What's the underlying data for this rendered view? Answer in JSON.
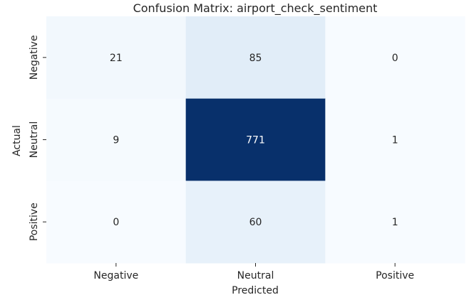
{
  "chart_data": {
    "type": "heatmap",
    "title": "Confusion Matrix: airport_check_sentiment",
    "xlabel": "Predicted",
    "ylabel": "Actual",
    "x_categories": [
      "Negative",
      "Neutral",
      "Positive"
    ],
    "y_categories": [
      "Negative",
      "Neutral",
      "Positive"
    ],
    "values": [
      [
        21,
        85,
        0
      ],
      [
        9,
        771,
        1
      ],
      [
        0,
        60,
        1
      ]
    ],
    "colormap": "Blues",
    "color_range": [
      0,
      771
    ],
    "colorbar": false,
    "grid": false,
    "colors": {
      "low": "#f7fbff",
      "mid1": "#deebf7",
      "mid2": "#c6dbef",
      "mid3": "#9ecae1",
      "mid4": "#6baed6",
      "mid5": "#4292c6",
      "mid6": "#2171b5",
      "mid7": "#08519c",
      "high": "#08306b",
      "text_dark": "#262626",
      "text_light": "#ffffff"
    }
  }
}
